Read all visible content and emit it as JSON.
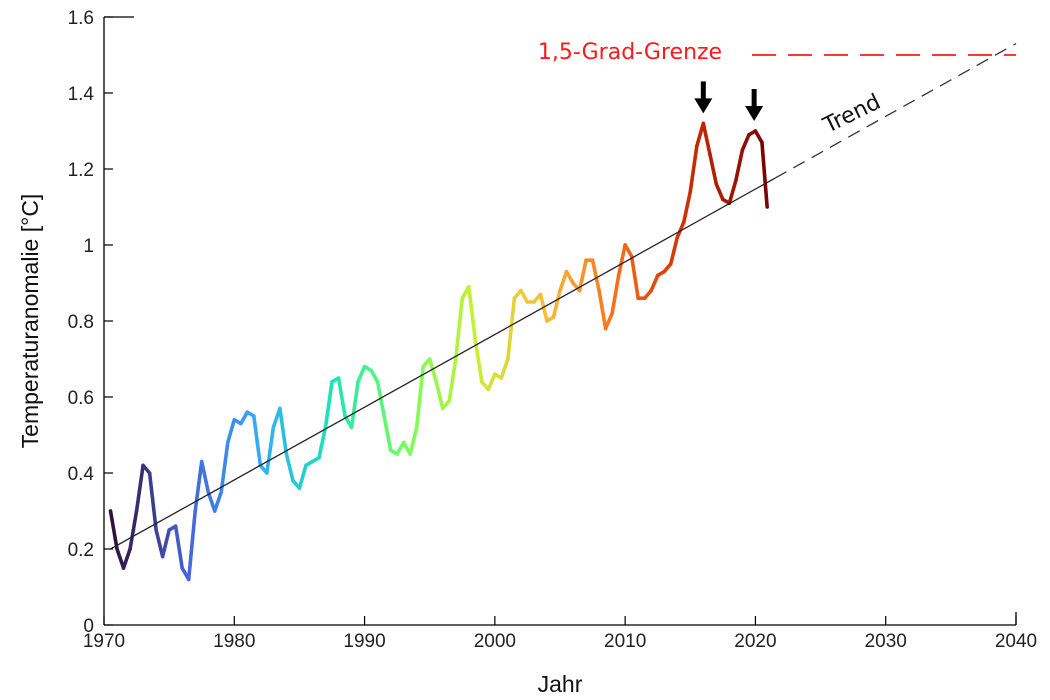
{
  "chart_data": {
    "type": "line",
    "xlabel": "Jahr",
    "ylabel": "Temperaturanomalie [°C]",
    "xlim": [
      1970,
      2040
    ],
    "ylim": [
      0,
      1.6
    ],
    "x_ticks": [
      "1970",
      "1980",
      "1990",
      "2000",
      "2010",
      "2020",
      "2030",
      "2040"
    ],
    "y_ticks": [
      "0",
      "0.2",
      "0.4",
      "0.6",
      "0.8",
      "1",
      "1.2",
      "1.4",
      "1.6"
    ],
    "grid": false,
    "colormap": [
      "#30123b",
      "#4662d7",
      "#36aaf9",
      "#1ae4b6",
      "#72fe5e",
      "#c8ef34",
      "#faba39",
      "#f66b19",
      "#ca2a04",
      "#7a0403"
    ],
    "series": [
      {
        "x": [
          1970.5,
          1971.0,
          1971.5,
          1972.0,
          1972.5,
          1973.0,
          1973.5,
          1974.0,
          1974.5,
          1975.0,
          1975.5,
          1976.0,
          1976.5,
          1977.0,
          1977.5,
          1978.0,
          1978.5,
          1979.0,
          1979.5,
          1980.0,
          1980.5,
          1981.0,
          1981.5,
          1982.0,
          1982.5,
          1983.0,
          1983.5,
          1984.0,
          1984.5,
          1985.0,
          1985.5,
          1986.0,
          1986.5,
          1987.0,
          1987.5,
          1988.0,
          1988.5,
          1989.0,
          1989.5,
          1990.0,
          1990.5,
          1991.0,
          1991.5,
          1992.0,
          1992.5,
          1993.0,
          1993.5,
          1994.0,
          1994.5,
          1995.0,
          1995.5,
          1996.0,
          1996.5,
          1997.0,
          1997.5,
          1998.0,
          1998.5,
          1999.0,
          1999.5,
          2000.0,
          2000.5,
          2001.0,
          2001.5,
          2002.0,
          2002.5,
          2003.0,
          2003.5,
          2004.0,
          2004.5,
          2005.0,
          2005.5,
          2006.0,
          2006.5,
          2007.0,
          2007.5,
          2008.0,
          2008.5,
          2009.0,
          2009.5,
          2010.0,
          2010.5,
          2011.0,
          2011.5,
          2012.0,
          2012.5,
          2013.0,
          2013.5,
          2014.0,
          2014.5,
          2015.0,
          2015.5,
          2016.0,
          2016.5,
          2017.0,
          2017.5,
          2018.0,
          2018.5,
          2019.0,
          2019.5,
          2020.0,
          2020.5,
          2020.9
        ],
        "y": [
          0.3,
          0.2,
          0.15,
          0.2,
          0.3,
          0.42,
          0.4,
          0.25,
          0.18,
          0.25,
          0.26,
          0.15,
          0.12,
          0.3,
          0.43,
          0.35,
          0.3,
          0.35,
          0.48,
          0.54,
          0.53,
          0.56,
          0.55,
          0.42,
          0.4,
          0.52,
          0.57,
          0.45,
          0.38,
          0.36,
          0.42,
          0.43,
          0.44,
          0.52,
          0.64,
          0.65,
          0.55,
          0.52,
          0.64,
          0.68,
          0.67,
          0.64,
          0.55,
          0.46,
          0.45,
          0.48,
          0.45,
          0.52,
          0.68,
          0.7,
          0.64,
          0.57,
          0.59,
          0.7,
          0.86,
          0.89,
          0.75,
          0.64,
          0.62,
          0.66,
          0.65,
          0.7,
          0.86,
          0.88,
          0.85,
          0.85,
          0.87,
          0.8,
          0.81,
          0.88,
          0.93,
          0.9,
          0.88,
          0.96,
          0.96,
          0.88,
          0.78,
          0.82,
          0.92,
          1.0,
          0.97,
          0.86,
          0.86,
          0.88,
          0.92,
          0.93,
          0.95,
          1.02,
          1.06,
          1.14,
          1.26,
          1.32,
          1.24,
          1.16,
          1.12,
          1.11,
          1.17,
          1.25,
          1.29,
          1.3,
          1.27,
          1.1
        ]
      }
    ],
    "trend": {
      "x_start": 1970.5,
      "y_start": 0.2,
      "x_solid_end": 2021.5,
      "x_end": 2040.0,
      "y_end": 1.53,
      "label": "Trend"
    },
    "limit": {
      "label": "1,5-Grad-Grenze",
      "value": 1.5,
      "color": "#ff1a1a"
    },
    "peak_markers": [
      {
        "x": 2016.0,
        "y": 1.32
      },
      {
        "x": 2019.9,
        "y": 1.3
      }
    ]
  }
}
